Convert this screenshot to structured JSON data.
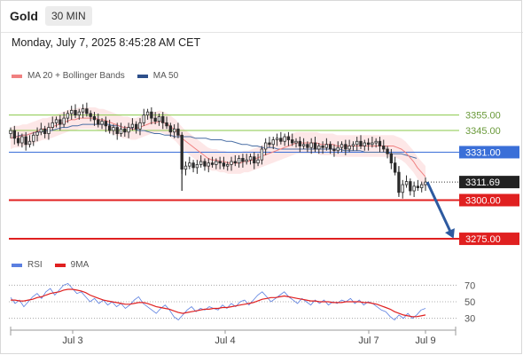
{
  "header": {
    "symbol": "Gold",
    "interval": "30 MIN",
    "datetime": "Monday, July 7, 2025 8:45:28 AM CET"
  },
  "price_legend": {
    "ma20_bb": "MA 20 + Bollinger Bands",
    "ma50": "MA 50"
  },
  "rsi_legend": {
    "rsi": "RSI",
    "ma9": "9MA"
  },
  "colors": {
    "accent_blue": "#3a6fd8",
    "support_red": "#e02020",
    "resistance_green": "#8ac84a",
    "candle": "#2b2b2b",
    "bollinger_fill": "#fde3e3",
    "ma20": "#f08080",
    "ma50": "#4a6fa5",
    "forecast_arrow": "#2d5aa0"
  },
  "chart_data": [
    {
      "type": "candlestick",
      "x_labels": [
        "Jul 3",
        "Jul 4",
        "Jul 7",
        "Jul 9"
      ],
      "ylim": [
        3267,
        3372
      ],
      "levels": [
        {
          "label": "3355.00",
          "value": 3355,
          "kind": "resistance"
        },
        {
          "label": "3345.00",
          "value": 3345,
          "kind": "resistance"
        },
        {
          "label": "3331.00",
          "value": 3331,
          "kind": "pivot"
        },
        {
          "label": "3311.69",
          "value": 3311.69,
          "kind": "current"
        },
        {
          "label": "3300.00",
          "value": 3300,
          "kind": "support"
        },
        {
          "label": "3275.00",
          "value": 3275,
          "kind": "support"
        }
      ],
      "series": [
        {
          "name": "MA 20 + Bollinger Bands"
        },
        {
          "name": "MA 50"
        }
      ],
      "close": [
        3345,
        3340,
        3337,
        3341,
        3336,
        3338,
        3342,
        3344,
        3346,
        3343,
        3347,
        3350,
        3352,
        3349,
        3353,
        3356,
        3358,
        3355,
        3357,
        3359,
        3356,
        3354,
        3352,
        3349,
        3351,
        3348,
        3345,
        3347,
        3343,
        3346,
        3344,
        3347,
        3349,
        3346,
        3350,
        3355,
        3357,
        3353,
        3351,
        3354,
        3350,
        3348,
        3344,
        3346,
        3342,
        3320,
        3322,
        3324,
        3321,
        3323,
        3325,
        3322,
        3324,
        3323,
        3325,
        3324,
        3322,
        3323,
        3325,
        3324,
        3327,
        3325,
        3326,
        3328,
        3324,
        3326,
        3333,
        3337,
        3336,
        3339,
        3340,
        3338,
        3341,
        3339,
        3337,
        3338,
        3335,
        3336,
        3334,
        3337,
        3333,
        3335,
        3334,
        3336,
        3333,
        3332,
        3334,
        3336,
        3333,
        3335,
        3336,
        3338,
        3335,
        3337,
        3336,
        3337,
        3338,
        3335,
        3333,
        3330,
        3324,
        3318,
        3305,
        3310,
        3312,
        3306,
        3309,
        3308,
        3310,
        3311.69
      ],
      "ma20": [
        3340,
        3341,
        3341,
        3342,
        3342,
        3343,
        3344,
        3345,
        3346,
        3346,
        3347,
        3348,
        3349,
        3350,
        3351,
        3352,
        3352,
        3353,
        3353,
        3353,
        3353,
        3353,
        3352,
        3352,
        3351,
        3350,
        3349,
        3348,
        3347,
        3347,
        3346,
        3346,
        3347,
        3348,
        3349,
        3350,
        3350,
        3351,
        3350,
        3349,
        3347,
        3345,
        3342,
        3339,
        3337,
        3335,
        3333,
        3331,
        3329,
        3327,
        3326,
        3326,
        3325,
        3325,
        3324,
        3324,
        3324,
        3324,
        3325,
        3325,
        3326,
        3327,
        3328,
        3329,
        3330,
        3331,
        3332,
        3333,
        3334,
        3335,
        3336,
        3337,
        3337,
        3337,
        3337,
        3337,
        3337,
        3336,
        3336,
        3336,
        3336,
        3335,
        3335,
        3335,
        3335,
        3335,
        3335,
        3335,
        3335,
        3335,
        3335,
        3335,
        3335,
        3335,
        3335,
        3335,
        3334,
        3333,
        3331,
        3328,
        3325,
        3321,
        3318,
        3315
      ],
      "bb_width": 7,
      "ma50": [
        3340,
        3341,
        3342,
        3342,
        3343,
        3344,
        3344,
        3345,
        3345,
        3346,
        3347,
        3347,
        3348,
        3348,
        3349,
        3349,
        3349,
        3349,
        3349,
        3349,
        3348,
        3348,
        3347,
        3347,
        3346,
        3345,
        3345,
        3344,
        3343,
        3343,
        3342,
        3342,
        3341,
        3341,
        3341,
        3341,
        3340,
        3340,
        3340,
        3339,
        3339,
        3339,
        3338,
        3338,
        3337,
        3336,
        3336,
        3335,
        3335,
        3334,
        3334,
        3334,
        3333,
        3333,
        3333,
        3333,
        3333,
        3333,
        3333,
        3333,
        3333,
        3333,
        3333,
        3333,
        3333,
        3332,
        3332,
        3332,
        3332,
        3331,
        3331,
        3331,
        3331,
        3331,
        3330,
        3330,
        3330,
        3329,
        3328,
        3327
      ],
      "forecast": {
        "from": 3311.69,
        "to": 3275
      }
    },
    {
      "type": "line",
      "ylim": [
        20,
        80
      ],
      "y_ticks": [
        70,
        50,
        30
      ],
      "series": [
        {
          "name": "RSI",
          "values": [
            55,
            48,
            52,
            44,
            50,
            56,
            60,
            54,
            62,
            66,
            58,
            64,
            70,
            72,
            66,
            60,
            62,
            56,
            50,
            54,
            48,
            52,
            46,
            50,
            44,
            48,
            42,
            46,
            52,
            56,
            48,
            44,
            40,
            36,
            42,
            46,
            40,
            32,
            28,
            34,
            40,
            44,
            38,
            42,
            40,
            44,
            42,
            40,
            46,
            42,
            48,
            44,
            50,
            52,
            46,
            52,
            58,
            62,
            56,
            50,
            54,
            58,
            62,
            56,
            52,
            48,
            54,
            50,
            46,
            52,
            48,
            52,
            46,
            50,
            48,
            52,
            50,
            54,
            48,
            52,
            46,
            50,
            48,
            44,
            40,
            38,
            32,
            28,
            34,
            30,
            36,
            30,
            34,
            40,
            42
          ]
        },
        {
          "name": "9MA",
          "values": [
            52,
            52,
            51,
            51,
            52,
            53,
            55,
            56,
            58,
            60,
            61,
            62,
            64,
            65,
            65,
            64,
            63,
            61,
            58,
            56,
            54,
            52,
            51,
            50,
            49,
            48,
            47,
            47,
            48,
            49,
            49,
            48,
            46,
            44,
            43,
            42,
            41,
            39,
            37,
            36,
            37,
            38,
            39,
            40,
            41,
            41,
            42,
            42,
            43,
            43,
            44,
            45,
            46,
            47,
            48,
            49,
            51,
            53,
            54,
            55,
            55,
            56,
            57,
            56,
            55,
            54,
            53,
            52,
            51,
            51,
            50,
            50,
            50,
            49,
            49,
            49,
            50,
            50,
            50,
            50,
            49,
            49,
            48,
            47,
            45,
            43,
            41,
            38,
            36,
            34,
            33,
            32,
            32,
            33,
            34
          ]
        }
      ]
    }
  ]
}
